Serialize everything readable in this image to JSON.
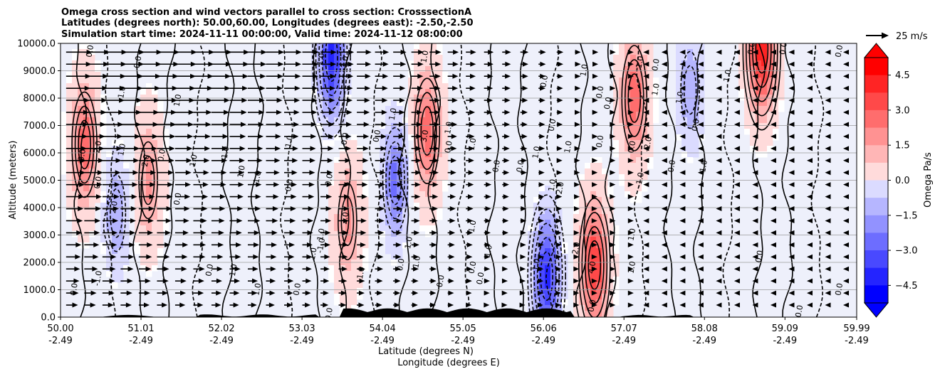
{
  "chart_data": {
    "type": "heatmap",
    "title_lines": [
      "Omega cross section and wind vectors parallel to cross section: CrosssectionA",
      "Latitudes (degrees north): 50.00,60.00, Longitudes (degrees east): -2.50,-2.50",
      "Simulation start time: 2024-11-11 00:00:00, Valid time: 2024-11-12 08:00:00"
    ],
    "xlabel_lines": [
      "Latitude (degrees N)",
      "Longitude (degrees E)"
    ],
    "ylabel": "Altitude (meters)",
    "x_ticks": [
      {
        "lat": "50.00",
        "lon": "-2.49",
        "value": 50.0
      },
      {
        "lat": "51.01",
        "lon": "-2.49",
        "value": 51.01
      },
      {
        "lat": "52.02",
        "lon": "-2.49",
        "value": 52.02
      },
      {
        "lat": "53.03",
        "lon": "-2.49",
        "value": 53.03
      },
      {
        "lat": "54.04",
        "lon": "-2.49",
        "value": 54.04
      },
      {
        "lat": "55.05",
        "lon": "-2.49",
        "value": 55.05
      },
      {
        "lat": "56.06",
        "lon": "-2.49",
        "value": 56.06
      },
      {
        "lat": "57.07",
        "lon": "-2.49",
        "value": 57.07
      },
      {
        "lat": "58.08",
        "lon": "-2.49",
        "value": 58.08
      },
      {
        "lat": "59.09",
        "lon": "-2.49",
        "value": 59.09
      },
      {
        "lat": "59.99",
        "lon": "-2.49",
        "value": 59.99
      }
    ],
    "y_ticks": [
      "0.0",
      "1000.0",
      "2000.0",
      "3000.0",
      "4000.0",
      "5000.0",
      "6000.0",
      "7000.0",
      "8000.0",
      "9000.0",
      "10000.0"
    ],
    "xlim": [
      50.0,
      59.99
    ],
    "ylim": [
      0,
      10000
    ],
    "grid": "horizontal",
    "colorbar": {
      "label": "Omega Pa/s",
      "range": [
        -5.25,
        5.25
      ],
      "ticks": [
        "4.5",
        "3.0",
        "1.5",
        "0.0",
        "−1.5",
        "−3.0",
        "−4.5"
      ],
      "tick_values": [
        4.5,
        3.0,
        1.5,
        0.0,
        -1.5,
        -3.0,
        -4.5
      ],
      "extend": "both",
      "cmap": "bwr"
    },
    "quiver_key": {
      "label": "25 m/s"
    },
    "features": {
      "positive_omega_maxima": [
        {
          "lat": 50.3,
          "alt": 6300,
          "value": 3.0
        },
        {
          "lat": 51.1,
          "alt": 5000,
          "value": 2.0
        },
        {
          "lat": 53.6,
          "alt": 3500,
          "value": 2.0
        },
        {
          "lat": 54.6,
          "alt": 6800,
          "value": 3.0
        },
        {
          "lat": 56.7,
          "alt": 1900,
          "value": 4.0
        },
        {
          "lat": 57.2,
          "alt": 8000,
          "value": 3.0
        },
        {
          "lat": 58.8,
          "alt": 9800,
          "value": 4.5
        }
      ],
      "negative_omega_minima": [
        {
          "lat": 50.7,
          "alt": 3800,
          "value": -2.0
        },
        {
          "lat": 53.4,
          "alt": 9500,
          "value": -4.5
        },
        {
          "lat": 54.2,
          "alt": 5000,
          "value": -3.0
        },
        {
          "lat": 56.1,
          "alt": 1500,
          "value": -4.5
        },
        {
          "lat": 57.9,
          "alt": 8300,
          "value": -2.0
        }
      ]
    },
    "contour_labels": [
      {
        "text": "0.0",
        "lat": 50.4,
        "alt": 9700
      },
      {
        "text": "0.0",
        "lat": 51.0,
        "alt": 9300
      },
      {
        "text": "1.0",
        "lat": 50.8,
        "alt": 8200
      },
      {
        "text": "1.0",
        "lat": 51.5,
        "alt": 7900
      },
      {
        "text": "3.0",
        "lat": 50.3,
        "alt": 5900
      },
      {
        "text": "2.0",
        "lat": 50.5,
        "alt": 6200
      },
      {
        "text": "1.0",
        "lat": 50.8,
        "alt": 6100
      },
      {
        "text": "2.0",
        "lat": 51.1,
        "alt": 5700
      },
      {
        "text": "0.0",
        "lat": 51.3,
        "alt": 5900
      },
      {
        "text": "1.0",
        "lat": 51.7,
        "alt": 5700
      },
      {
        "text": "1.0",
        "lat": 52.1,
        "alt": 6000
      },
      {
        "text": "1.0",
        "lat": 52.3,
        "alt": 5300
      },
      {
        "text": "1.0",
        "lat": 52.5,
        "alt": 5100
      },
      {
        "text": "1.0",
        "lat": 52.9,
        "alt": 6400
      },
      {
        "text": "0.0",
        "lat": 52.9,
        "alt": 4800
      },
      {
        "text": "0.0",
        "lat": 50.5,
        "alt": 4900
      },
      {
        "text": "0.0",
        "lat": 51.5,
        "alt": 4300
      },
      {
        "text": "2.0",
        "lat": 50.7,
        "alt": 4000
      },
      {
        "text": "-1.0",
        "lat": 50.5,
        "alt": 1400
      },
      {
        "text": "0.0",
        "lat": 50.2,
        "alt": 1000
      },
      {
        "text": "0.0",
        "lat": 51.9,
        "alt": 1700
      },
      {
        "text": "1.0",
        "lat": 52.2,
        "alt": 1700
      },
      {
        "text": "1.0",
        "lat": 52.5,
        "alt": 1000
      },
      {
        "text": "0.0",
        "lat": 53.0,
        "alt": 1000
      },
      {
        "text": "1.0",
        "lat": 53.2,
        "alt": 2300
      },
      {
        "text": "1.0",
        "lat": 53.3,
        "alt": 3000
      },
      {
        "text": "1.0",
        "lat": 53.3,
        "alt": 9400
      },
      {
        "text": "1.0",
        "lat": 53.6,
        "alt": 9300
      },
      {
        "text": "0.0",
        "lat": 53.6,
        "alt": 6500
      },
      {
        "text": "0.0",
        "lat": 53.4,
        "alt": 5000
      },
      {
        "text": "-1.0",
        "lat": 53.3,
        "alt": 2600
      },
      {
        "text": "2.0",
        "lat": 53.6,
        "alt": 3600
      },
      {
        "text": "1.0",
        "lat": 53.8,
        "alt": 1600
      },
      {
        "text": "0.0",
        "lat": 53.4,
        "alt": 100
      },
      {
        "text": "0.0",
        "lat": 54.0,
        "alt": 6600
      },
      {
        "text": "1.0",
        "lat": 54.2,
        "alt": 7400
      },
      {
        "text": "1.0",
        "lat": 54.6,
        "alt": 9500
      },
      {
        "text": "3.0",
        "lat": 54.6,
        "alt": 6600
      },
      {
        "text": "1.0",
        "lat": 54.9,
        "alt": 6900
      },
      {
        "text": "0.0",
        "lat": 54.9,
        "alt": 6200
      },
      {
        "text": "1.0",
        "lat": 55.2,
        "alt": 6300
      },
      {
        "text": "1.0",
        "lat": 55.2,
        "alt": 3300
      },
      {
        "text": "1.0",
        "lat": 54.4,
        "alt": 2700
      },
      {
        "text": "0.0",
        "lat": 54.3,
        "alt": 1900
      },
      {
        "text": "1.0",
        "lat": 54.5,
        "alt": 2000
      },
      {
        "text": "0.0",
        "lat": 55.2,
        "alt": 1800
      },
      {
        "text": "0.0",
        "lat": 55.3,
        "alt": 1400
      },
      {
        "text": "0.0",
        "lat": 54.8,
        "alt": 1300
      },
      {
        "text": "1.0",
        "lat": 55.4,
        "alt": 2400
      },
      {
        "text": "0.0",
        "lat": 55.5,
        "alt": 5500
      },
      {
        "text": "0.0",
        "lat": 55.8,
        "alt": 5500
      },
      {
        "text": "0.0",
        "lat": 56.1,
        "alt": 8600
      },
      {
        "text": "1.0",
        "lat": 56.0,
        "alt": 6000
      },
      {
        "text": "0.0",
        "lat": 56.2,
        "alt": 7000
      },
      {
        "text": "1.0",
        "lat": 56.4,
        "alt": 6200
      },
      {
        "text": "1.0",
        "lat": 56.2,
        "alt": 4800
      },
      {
        "text": "2.0",
        "lat": 56.3,
        "alt": 4700
      },
      {
        "text": "1.0",
        "lat": 56.6,
        "alt": 9000
      },
      {
        "text": "0.0",
        "lat": 56.8,
        "alt": 8200
      },
      {
        "text": "0.0",
        "lat": 56.9,
        "alt": 7800
      },
      {
        "text": "0.0",
        "lat": 56.8,
        "alt": 6400
      },
      {
        "text": "0.0",
        "lat": 57.2,
        "alt": 6200
      },
      {
        "text": "1.0",
        "lat": 57.3,
        "alt": 9300
      },
      {
        "text": "0.0",
        "lat": 57.5,
        "alt": 9200
      },
      {
        "text": "-2.0",
        "lat": 57.4,
        "alt": 6300
      },
      {
        "text": "-1.0",
        "lat": 57.3,
        "alt": 5000
      },
      {
        "text": "1.0",
        "lat": 57.2,
        "alt": 3000
      },
      {
        "text": "1.0",
        "lat": 56.0,
        "alt": 1900
      },
      {
        "text": "2.0",
        "lat": 56.5,
        "alt": 2500
      },
      {
        "text": "4.0",
        "lat": 56.7,
        "alt": 1800
      },
      {
        "text": "0.0",
        "lat": 56.7,
        "alt": 400
      },
      {
        "text": "1.0",
        "lat": 57.5,
        "alt": 8300
      },
      {
        "text": "1.0",
        "lat": 57.8,
        "alt": 8000
      },
      {
        "text": "0.0",
        "lat": 58.0,
        "alt": 7000
      },
      {
        "text": "0.0",
        "lat": 57.7,
        "alt": 5500
      },
      {
        "text": "1.0",
        "lat": 58.1,
        "alt": 5500
      },
      {
        "text": "1.0",
        "lat": 58.4,
        "alt": 8800
      },
      {
        "text": "0.0",
        "lat": 58.7,
        "alt": 9800
      },
      {
        "text": "0.0",
        "lat": 59.1,
        "alt": 9800
      },
      {
        "text": "0.0",
        "lat": 59.8,
        "alt": 9700
      },
      {
        "text": "0.0",
        "lat": 58.8,
        "alt": 2200
      },
      {
        "text": "0.0",
        "lat": 59.8,
        "alt": 1000
      },
      {
        "text": "0.0",
        "lat": 59.3,
        "alt": 200
      },
      {
        "text": "1.0",
        "lat": 57.2,
        "alt": 1800
      }
    ]
  }
}
